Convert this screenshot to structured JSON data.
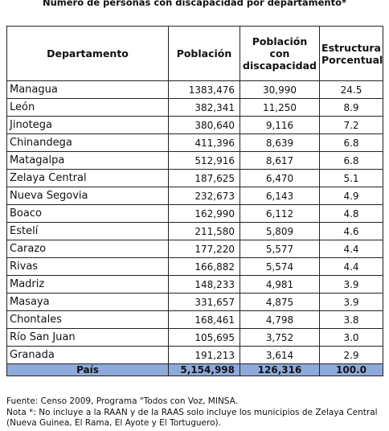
{
  "title": "Número de personas con discapacidad por departamento*",
  "headers": {
    "departamento": "Departamento",
    "poblacion": "Población",
    "con_discapacidad": [
      "Población",
      "con",
      "discapacidad"
    ],
    "estructura": [
      "Estructura",
      "Porcentual"
    ]
  },
  "rows": [
    {
      "departamento": "Managua",
      "poblacion": "1383,476",
      "discapacidad": "30,990",
      "porcentual": "24.5"
    },
    {
      "departamento": "León",
      "poblacion": "382,341",
      "discapacidad": "11,250",
      "porcentual": "8.9"
    },
    {
      "departamento": "Jinotega",
      "poblacion": "380,640",
      "discapacidad": "9,116",
      "porcentual": "7.2"
    },
    {
      "departamento": "Chinandega",
      "poblacion": "411,396",
      "discapacidad": "8,639",
      "porcentual": "6.8"
    },
    {
      "departamento": "Matagalpa",
      "poblacion": "512,916",
      "discapacidad": "8,617",
      "porcentual": "6.8"
    },
    {
      "departamento": "Zelaya Central",
      "poblacion": "187,625",
      "discapacidad": "6,470",
      "porcentual": "5.1"
    },
    {
      "departamento": "Nueva Segovia",
      "poblacion": "232,673",
      "discapacidad": "6,143",
      "porcentual": "4.9"
    },
    {
      "departamento": "Boaco",
      "poblacion": "162,990",
      "discapacidad": "6,112",
      "porcentual": "4.8"
    },
    {
      "departamento": "Estelí",
      "poblacion": "211,580",
      "discapacidad": "5,809",
      "porcentual": "4.6"
    },
    {
      "departamento": "Carazo",
      "poblacion": "177,220",
      "discapacidad": "5,577",
      "porcentual": "4.4"
    },
    {
      "departamento": "Rivas",
      "poblacion": "166,882",
      "discapacidad": "5,574",
      "porcentual": "4.4"
    },
    {
      "departamento": "Madriz",
      "poblacion": "148,233",
      "discapacidad": "4,981",
      "porcentual": "3.9"
    },
    {
      "departamento": "Masaya",
      "poblacion": "331,657",
      "discapacidad": "4,875",
      "porcentual": "3.9"
    },
    {
      "departamento": "Chontales",
      "poblacion": "168,461",
      "discapacidad": "4,798",
      "porcentual": "3.8"
    },
    {
      "departamento": "Río San Juan",
      "poblacion": "105,695",
      "discapacidad": "3,752",
      "porcentual": "3.0"
    },
    {
      "departamento": "Granada",
      "poblacion": "191,213",
      "discapacidad": "3,614",
      "porcentual": "2.9"
    }
  ],
  "total": {
    "departamento": "País",
    "poblacion": "5,154,998",
    "discapacidad": "126,316",
    "porcentual": "100.0"
  },
  "total_color": "#8eaadb",
  "footnotes": [
    "Fuente: Censo 2009, Programa \"Todos con Voz, MINSA.",
    "Nota *: No incluye a la RAAN y de la RAAS solo incluye los municipios de Zelaya Central",
    "(Nueva Guinea, El Rama, El Ayote y El Tortuguero)."
  ]
}
